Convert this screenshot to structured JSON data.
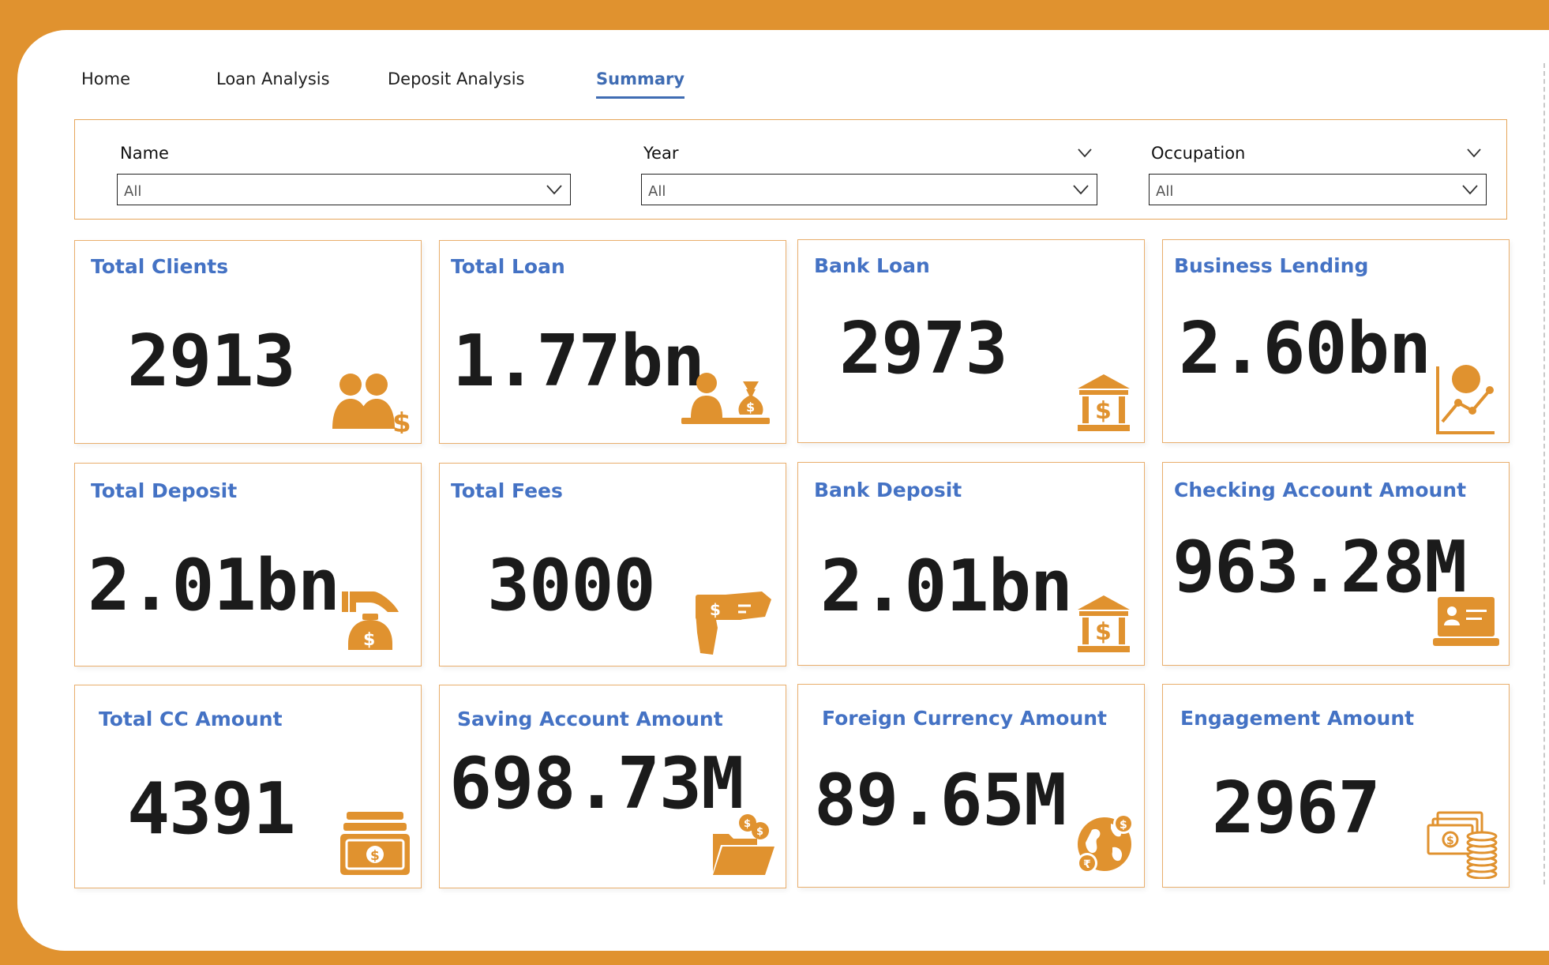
{
  "nav": {
    "tabs": [
      {
        "label": "Home"
      },
      {
        "label": "Loan Analysis"
      },
      {
        "label": "Deposit Analysis"
      },
      {
        "label": "Summary",
        "active": true
      }
    ]
  },
  "filters": {
    "name": {
      "label": "Name",
      "value": "All"
    },
    "year": {
      "label": "Year",
      "value": "All"
    },
    "occupation": {
      "label": "Occupation",
      "value": "All"
    }
  },
  "cards": [
    {
      "title": "Total Clients",
      "value": "2913",
      "icon": "clients-dollar-icon"
    },
    {
      "title": "Total Loan",
      "value": "1.77bn",
      "icon": "banker-moneybag-icon"
    },
    {
      "title": "Bank Loan",
      "value": "2973",
      "icon": "bank-building-icon"
    },
    {
      "title": "Business Lending",
      "value": "2.60bn",
      "icon": "growth-chart-icon"
    },
    {
      "title": "Total Deposit",
      "value": "2.01bn",
      "icon": "hand-deposit-icon"
    },
    {
      "title": "Total Fees",
      "value": "3000",
      "icon": "hand-cash-icon"
    },
    {
      "title": "Bank Deposit",
      "value": "2.01bn",
      "icon": "bank-building-icon"
    },
    {
      "title": "Checking Account Amount",
      "value": "963.28M",
      "icon": "laptop-account-icon"
    },
    {
      "title": "Total CC Amount",
      "value": "4391",
      "icon": "cash-wallet-icon"
    },
    {
      "title": "Saving Account Amount",
      "value": "698.73M",
      "icon": "folder-coins-icon"
    },
    {
      "title": "Foreign Currency Amount",
      "value": "89.65M",
      "icon": "globe-currency-icon"
    },
    {
      "title": "Engagement Amount",
      "value": "2967",
      "icon": "cash-coins-stack-icon"
    }
  ],
  "colors": {
    "accent": "#E0922F",
    "title": "#4472C4",
    "value": "#1B1B1B",
    "card_border": "#E9AE6C"
  }
}
